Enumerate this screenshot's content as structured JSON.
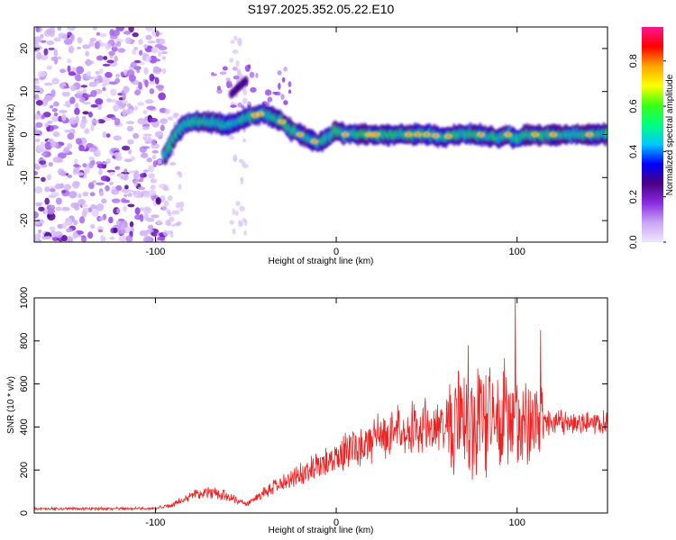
{
  "title": "S197.2025.352.05.22.E10",
  "chart_data": [
    {
      "type": "heatmap",
      "name": "spectrogram",
      "xlabel": "Height of straight line (km)",
      "ylabel": "Frequency (Hz)",
      "xlim": [
        -167,
        150
      ],
      "ylim": [
        -25,
        25
      ],
      "xticks": [
        -100,
        0,
        100
      ],
      "xtick_labels": [
        "-100",
        "0",
        "100"
      ],
      "yticks": [
        -20,
        -10,
        0,
        10,
        20
      ],
      "ytick_labels": [
        "-20",
        "-10",
        "0",
        "10",
        "20"
      ],
      "colorbar": {
        "label": "Normalized spectral amplitude",
        "range": [
          0,
          0.95
        ],
        "ticks": [
          0.0,
          0.2,
          0.4,
          0.6,
          0.8
        ],
        "tick_labels": [
          "0.0",
          "0.2",
          "0.4",
          "0.6",
          "0.8"
        ],
        "colormap": [
          "#f0e6ff",
          "#c8a6f5",
          "#8a2be2",
          "#4b0082",
          "#0000ff",
          "#00c8ff",
          "#00ff7f",
          "#39ff14",
          "#ffff00",
          "#ffa500",
          "#ff0000",
          "#ff1493"
        ]
      },
      "ridge": {
        "x": [
          -95,
          -90,
          -85,
          -80,
          -70,
          -60,
          -50,
          -40,
          -35,
          -30,
          -25,
          -20,
          -15,
          -10,
          -5,
          0,
          5,
          10,
          20,
          30,
          40,
          50,
          60,
          70,
          80,
          90,
          95,
          100,
          105,
          110,
          120,
          130,
          140,
          150
        ],
        "y": [
          -5,
          -1,
          2,
          3,
          3,
          2,
          4,
          5,
          4,
          3,
          1,
          0,
          -1,
          -2,
          -1,
          1,
          0,
          0,
          0,
          0,
          0,
          0,
          -0.5,
          0,
          0,
          -1,
          0,
          -1,
          0,
          0,
          0,
          0,
          0,
          0
        ]
      },
      "noise_region_x": [
        -167,
        -95
      ],
      "colors": {
        "ridge_peak": "#ff0000",
        "noise": "#8a2be2"
      }
    },
    {
      "type": "line",
      "name": "snr",
      "xlabel": "Height of straight line (km)",
      "ylabel": "SNR (10 * v/v)",
      "xlim": [
        -167,
        150
      ],
      "ylim": [
        0,
        1000
      ],
      "xticks": [
        -100,
        0,
        100
      ],
      "xtick_labels": [
        "-100",
        "0",
        "100"
      ],
      "yticks": [
        0,
        200,
        400,
        600,
        800,
        1000
      ],
      "ytick_labels": [
        "0",
        "200",
        "400",
        "600",
        "800",
        "1000"
      ],
      "color": "#ee2222",
      "trend": {
        "x": [
          -167,
          -130,
          -100,
          -90,
          -80,
          -70,
          -60,
          -50,
          -40,
          -30,
          -20,
          -10,
          0,
          10,
          20,
          30,
          40,
          50,
          60,
          70,
          80,
          90,
          100,
          110,
          120,
          130,
          140,
          150
        ],
        "y": [
          20,
          20,
          20,
          40,
          80,
          100,
          80,
          40,
          90,
          140,
          180,
          220,
          260,
          300,
          340,
          370,
          390,
          400,
          400,
          410,
          420,
          420,
          420,
          420,
          420,
          420,
          420,
          420
        ]
      },
      "annotated_peaks": [
        {
          "x": 99,
          "y": 1000
        },
        {
          "x": 113,
          "y": 850
        },
        {
          "x": 73,
          "y": 780
        },
        {
          "x": 93,
          "y": 720
        }
      ]
    }
  ]
}
